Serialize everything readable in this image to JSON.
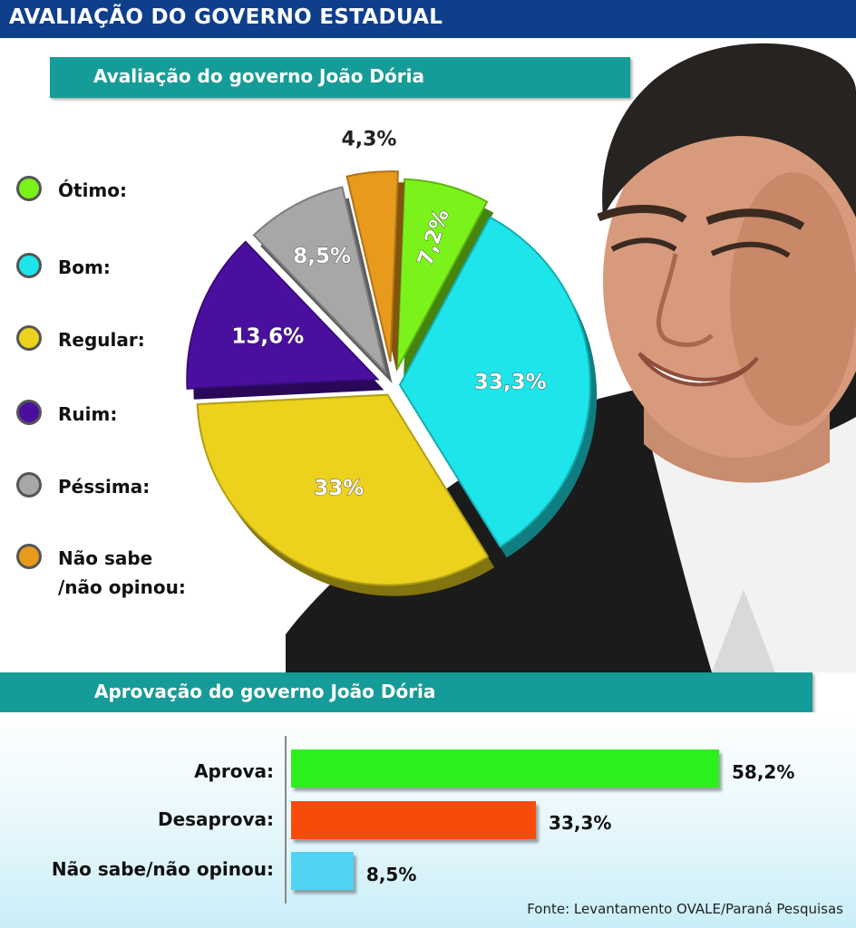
{
  "header": {
    "title": "AVALIAÇÃO DO GOVERNO ESTADUAL"
  },
  "pie_section": {
    "title": "Avaliação do governo João Dória"
  },
  "bar_section": {
    "title": "Aprovação do governo João Dória"
  },
  "legend": [
    {
      "label": "Ótimo:",
      "color": "#7cf21b"
    },
    {
      "label": "Bom:",
      "color": "#1de5ea"
    },
    {
      "label": "Regular:",
      "color": "#ecd21c"
    },
    {
      "label": "Ruim:",
      "color": "#4b0fa0"
    },
    {
      "label": "Péssima:",
      "color": "#a7a7a7"
    },
    {
      "label": "Não sabe /não opinou:",
      "label_line1": "Não sabe",
      "label_line2": "/não opinou:",
      "color": "#e89a1c"
    }
  ],
  "chart_data": [
    {
      "type": "pie",
      "title": "Avaliação do governo João Dória",
      "slices": [
        {
          "name": "Ótimo",
          "value": 7.2,
          "label": "7,2%",
          "color": "#7cf21b"
        },
        {
          "name": "Bom",
          "value": 33.3,
          "label": "33,3%",
          "color": "#1de5ea"
        },
        {
          "name": "Regular",
          "value": 33,
          "label": "33%",
          "color": "#ecd21c"
        },
        {
          "name": "Ruim",
          "value": 13.6,
          "label": "13,6%",
          "color": "#4b0fa0"
        },
        {
          "name": "Péssima",
          "value": 8.5,
          "label": "8,5%",
          "color": "#a7a7a7"
        },
        {
          "name": "Não sabe/não opinou",
          "value": 4.3,
          "label": "4,3%",
          "color": "#e89a1c"
        }
      ]
    },
    {
      "type": "bar",
      "orientation": "horizontal",
      "title": "Aprovação do governo João Dória",
      "categories": [
        "Aprova:",
        "Desaprova:",
        "Não sabe/não opinou:"
      ],
      "values": [
        58.2,
        33.3,
        8.5
      ],
      "value_labels": [
        "58,2%",
        "33,3%",
        "8,5%"
      ],
      "colors": [
        "#2cf01c",
        "#f74c09",
        "#52d3f4"
      ]
    }
  ],
  "source": "Fonte: Levantamento OVALE/Paraná Pesquisas"
}
